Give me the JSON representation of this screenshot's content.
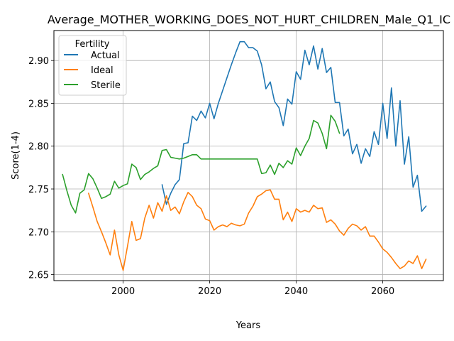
{
  "chart_data": {
    "type": "line",
    "title": "Average_MOTHER_WORKING_DOES_NOT_HURT_CHILDREN_Male_Q1_IC",
    "xlabel": "Years",
    "ylabel": "Score(1-4)",
    "xlim": [
      1984,
      2074
    ],
    "ylim": [
      2.643,
      2.935
    ],
    "xticks": [
      2000,
      2020,
      2040,
      2060
    ],
    "yticks": [
      2.65,
      2.7,
      2.75,
      2.8,
      2.85,
      2.9
    ],
    "ytick_labels": [
      "2.65",
      "2.70",
      "2.75",
      "2.80",
      "2.85",
      "2.90"
    ],
    "grid": true,
    "legend": {
      "title": "Fertility",
      "position": "top-left"
    },
    "series": [
      {
        "name": "Actual",
        "color": "#1f77b4",
        "x": [
          2009,
          2010,
          2011,
          2012,
          2013,
          2014,
          2015,
          2016,
          2017,
          2018,
          2019,
          2020,
          2021,
          2022,
          2023,
          2024,
          2025,
          2026,
          2027,
          2028,
          2029,
          2030,
          2031,
          2032,
          2033,
          2034,
          2035,
          2036,
          2037,
          2038,
          2039,
          2040,
          2041,
          2042,
          2043,
          2044,
          2045,
          2046,
          2047,
          2048,
          2049,
          2050,
          2051,
          2052,
          2053,
          2054,
          2055,
          2056,
          2057,
          2058,
          2059,
          2060,
          2061,
          2062,
          2063,
          2064,
          2065,
          2066,
          2067,
          2068,
          2069,
          2070
        ],
        "y": [
          2.755,
          2.732,
          2.745,
          2.755,
          2.761,
          2.803,
          2.804,
          2.835,
          2.83,
          2.841,
          2.833,
          2.85,
          2.832,
          2.85,
          2.865,
          2.88,
          2.895,
          2.909,
          2.922,
          2.922,
          2.915,
          2.915,
          2.911,
          2.895,
          2.867,
          2.875,
          2.852,
          2.845,
          2.824,
          2.855,
          2.849,
          2.887,
          2.878,
          2.912,
          2.895,
          2.917,
          2.89,
          2.914,
          2.886,
          2.892,
          2.851,
          2.851,
          2.812,
          2.82,
          2.791,
          2.802,
          2.78,
          2.797,
          2.788,
          2.817,
          2.802,
          2.85,
          2.809,
          2.868,
          2.8,
          2.853,
          2.779,
          2.811,
          2.752,
          2.766,
          2.724,
          2.73
        ]
      },
      {
        "name": "Ideal",
        "color": "#ff7f0e",
        "x": [
          1992,
          1993,
          1994,
          1995,
          1996,
          1997,
          1998,
          1999,
          2000,
          2001,
          2002,
          2003,
          2004,
          2005,
          2006,
          2007,
          2008,
          2009,
          2010,
          2011,
          2012,
          2013,
          2014,
          2015,
          2016,
          2017,
          2018,
          2019,
          2020,
          2021,
          2022,
          2023,
          2024,
          2025,
          2026,
          2027,
          2028,
          2029,
          2030,
          2031,
          2032,
          2033,
          2034,
          2035,
          2036,
          2037,
          2038,
          2039,
          2040,
          2041,
          2042,
          2043,
          2044,
          2045,
          2046,
          2047,
          2048,
          2049,
          2050,
          2051,
          2052,
          2053,
          2054,
          2055,
          2056,
          2057,
          2058,
          2059,
          2060,
          2061,
          2062,
          2063,
          2064,
          2065,
          2066,
          2067,
          2068,
          2069,
          2070
        ],
        "y": [
          2.745,
          2.729,
          2.712,
          2.7,
          2.687,
          2.673,
          2.702,
          2.673,
          2.655,
          2.683,
          2.712,
          2.69,
          2.692,
          2.716,
          2.731,
          2.716,
          2.734,
          2.724,
          2.742,
          2.725,
          2.729,
          2.721,
          2.735,
          2.746,
          2.741,
          2.731,
          2.727,
          2.715,
          2.713,
          2.702,
          2.706,
          2.708,
          2.706,
          2.71,
          2.708,
          2.707,
          2.709,
          2.722,
          2.73,
          2.741,
          2.744,
          2.748,
          2.749,
          2.738,
          2.738,
          2.714,
          2.723,
          2.712,
          2.727,
          2.723,
          2.725,
          2.723,
          2.731,
          2.727,
          2.728,
          2.711,
          2.714,
          2.709,
          2.701,
          2.696,
          2.704,
          2.709,
          2.707,
          2.702,
          2.706,
          2.695,
          2.695,
          2.688,
          2.68,
          2.676,
          2.67,
          2.663,
          2.657,
          2.66,
          2.666,
          2.663,
          2.672,
          2.657,
          2.668
        ]
      },
      {
        "name": "Sterile",
        "color": "#2ca02c",
        "x": [
          1986,
          1987,
          1988,
          1989,
          1990,
          1991,
          1992,
          1993,
          1994,
          1995,
          1996,
          1997,
          1998,
          1999,
          2000,
          2001,
          2002,
          2003,
          2004,
          2005,
          2006,
          2007,
          2008,
          2009,
          2010,
          2011,
          2012,
          2013,
          2014,
          2015,
          2016,
          2017,
          2018,
          2019,
          2020,
          2021,
          2022,
          2023,
          2024,
          2025,
          2026,
          2027,
          2028,
          2029,
          2030,
          2031,
          2032,
          2033,
          2034,
          2035,
          2036,
          2037,
          2038,
          2039,
          2040,
          2041,
          2042,
          2043,
          2044,
          2045,
          2046,
          2047,
          2048,
          2049,
          2050
        ],
        "y": [
          2.767,
          2.748,
          2.731,
          2.722,
          2.745,
          2.749,
          2.768,
          2.762,
          2.751,
          2.739,
          2.741,
          2.744,
          2.759,
          2.751,
          2.754,
          2.756,
          2.779,
          2.775,
          2.761,
          2.767,
          2.77,
          2.774,
          2.777,
          2.795,
          2.796,
          2.787,
          2.786,
          2.785,
          2.786,
          2.788,
          2.79,
          2.79,
          2.785,
          2.785,
          2.785,
          2.785,
          2.785,
          2.785,
          2.785,
          2.785,
          2.785,
          2.785,
          2.785,
          2.785,
          2.785,
          2.785,
          2.768,
          2.769,
          2.778,
          2.767,
          2.78,
          2.775,
          2.783,
          2.779,
          2.798,
          2.789,
          2.8,
          2.809,
          2.83,
          2.827,
          2.815,
          2.797,
          2.836,
          2.829,
          2.815
        ]
      }
    ]
  }
}
